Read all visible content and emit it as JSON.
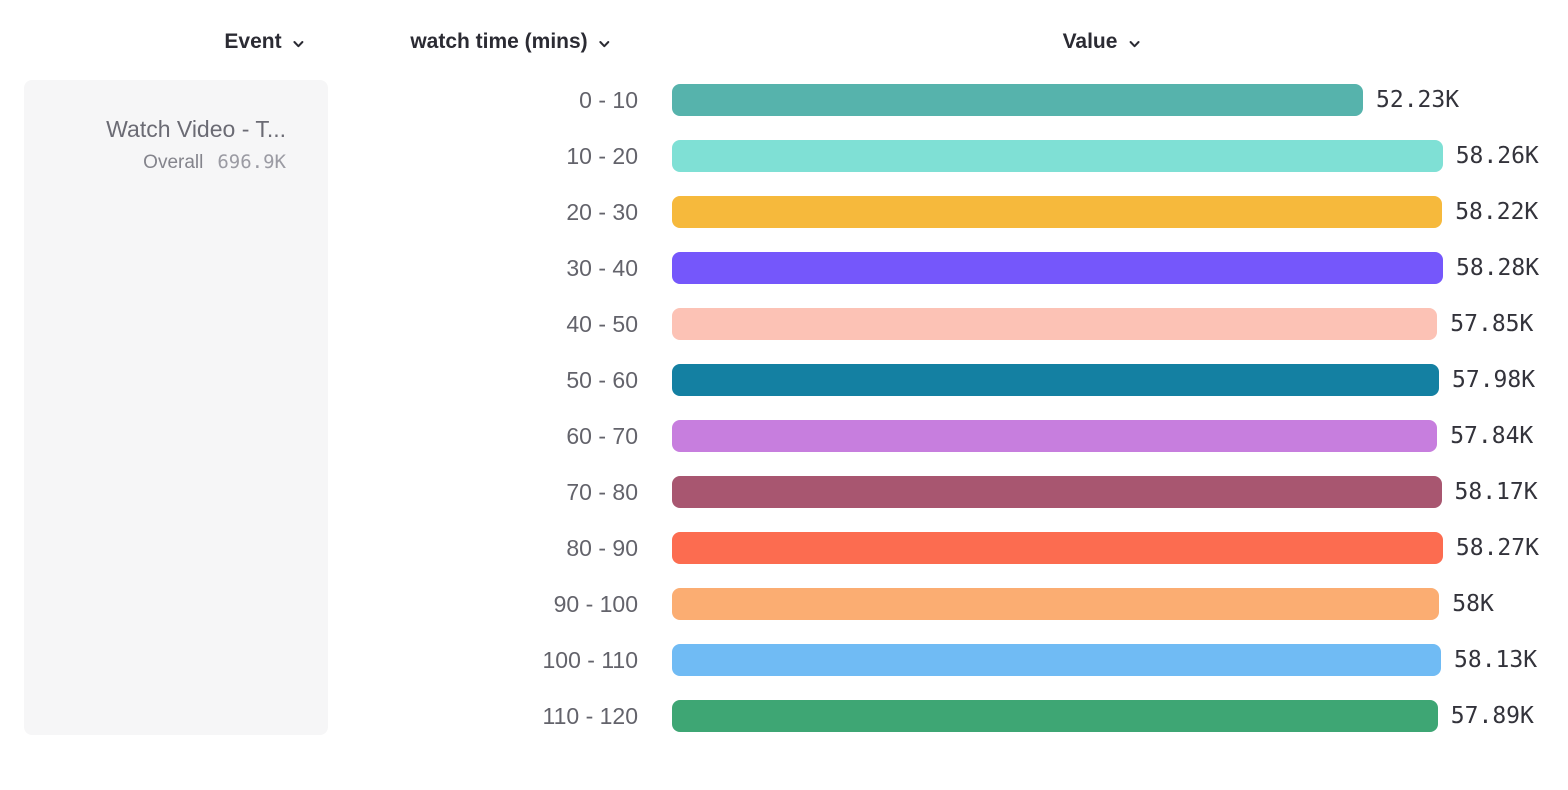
{
  "header": {
    "columns": [
      {
        "id": "event",
        "label": "Event"
      },
      {
        "id": "breakdown",
        "label": "watch time (mins)"
      },
      {
        "id": "value",
        "label": "Value"
      }
    ]
  },
  "event_panel": {
    "event_name": "Watch Video - T...",
    "overall_label": "Overall",
    "overall_value": "696.9K"
  },
  "chart_data": {
    "type": "bar",
    "orientation": "horizontal",
    "title": "",
    "xlabel": "Value",
    "ylabel": "watch time (mins)",
    "categories": [
      "0 - 10",
      "10 - 20",
      "20 - 30",
      "30 - 40",
      "40 - 50",
      "50 - 60",
      "60 - 70",
      "70 - 80",
      "80 - 90",
      "90 - 100",
      "100 - 110",
      "110 - 120"
    ],
    "values": [
      52230,
      58260,
      58220,
      58280,
      57850,
      57980,
      57840,
      58170,
      58270,
      58000,
      58130,
      57890
    ],
    "value_labels": [
      "52.23K",
      "58.26K",
      "58.22K",
      "58.28K",
      "57.85K",
      "57.98K",
      "57.84K",
      "58.17K",
      "58.27K",
      "58K",
      "58.13K",
      "57.89K"
    ],
    "bar_colors": [
      "#56b3ac",
      "#7fe0d5",
      "#f6b93c",
      "#7557fb",
      "#fcc2b5",
      "#1480a2",
      "#c77ede",
      "#a85670",
      "#fc6c50",
      "#fbad72",
      "#70bbf4",
      "#3ea674"
    ],
    "xlim": [
      0,
      58280
    ],
    "grid": false,
    "legend": false
  },
  "colors": {
    "header_text": "#2b2b33",
    "category_label": "#63636b",
    "value_label": "#33333b",
    "panel_bg": "#f6f6f7"
  }
}
